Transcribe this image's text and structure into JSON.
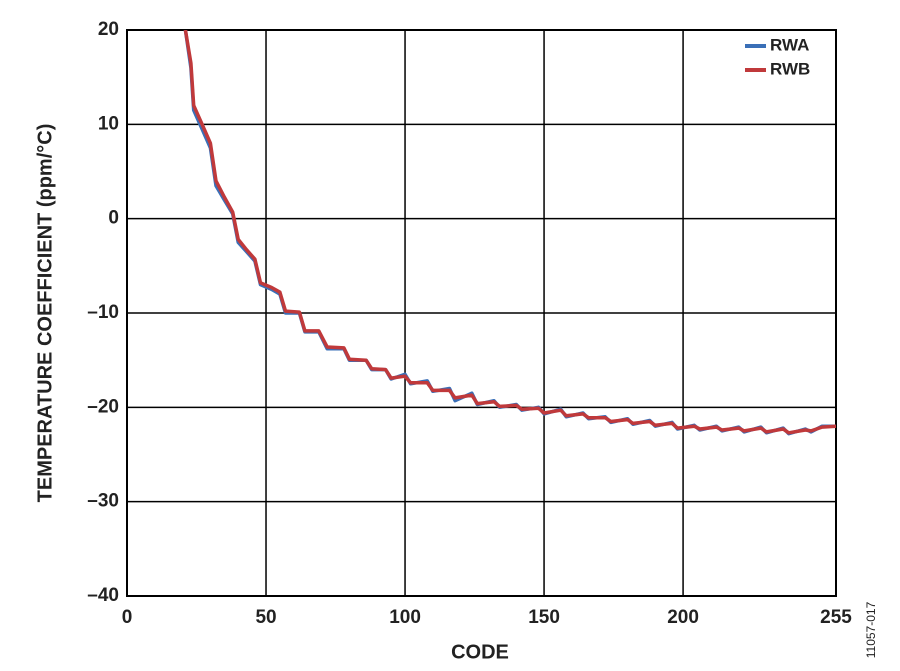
{
  "chart_data": {
    "type": "line",
    "xlabel": "CODE",
    "ylabel": "TEMPERATURE COEFFICIENT (ppm/°C)",
    "figure_id": "11057-017",
    "xlim": [
      0,
      255
    ],
    "ylim": [
      -40,
      20
    ],
    "xticks": [
      0,
      50,
      100,
      150,
      200,
      255
    ],
    "yticks": [
      {
        "value": -40,
        "label": "–40"
      },
      {
        "value": -30,
        "label": "–30"
      },
      {
        "value": -20,
        "label": "–20"
      },
      {
        "value": -10,
        "label": "–10"
      },
      0,
      10,
      20
    ],
    "grid": true,
    "legend": "upper right",
    "x": [
      21,
      23,
      24,
      27,
      30,
      32,
      35,
      38,
      40,
      43,
      46,
      48,
      52,
      55,
      57,
      62,
      64,
      69,
      72,
      78,
      80,
      86,
      88,
      93,
      95,
      100,
      102,
      108,
      110,
      116,
      118,
      124,
      126,
      132,
      134,
      140,
      142,
      148,
      150,
      156,
      158,
      164,
      166,
      172,
      174,
      180,
      182,
      188,
      190,
      196,
      198,
      204,
      206,
      212,
      214,
      220,
      222,
      228,
      230,
      236,
      238,
      244,
      246,
      250,
      255
    ],
    "series": [
      {
        "name": "RWA",
        "color": "#3a6fb7",
        "values": [
          20,
          16,
          11.5,
          9.5,
          7.5,
          3.5,
          2,
          0.5,
          -2.5,
          -3.5,
          -4.5,
          -7,
          -7.5,
          -8,
          -10,
          -10,
          -12,
          -12,
          -13.8,
          -13.8,
          -15,
          -15,
          -16,
          -16,
          -17,
          -16.5,
          -17.5,
          -17.2,
          -18.3,
          -18,
          -19.3,
          -18.5,
          -19.7,
          -19.3,
          -20,
          -19.7,
          -20.3,
          -20,
          -20.7,
          -20.2,
          -21,
          -20.6,
          -21.2,
          -21,
          -21.6,
          -21.2,
          -21.8,
          -21.4,
          -22,
          -21.6,
          -22.3,
          -21.9,
          -22.4,
          -22,
          -22.5,
          -22.1,
          -22.6,
          -22.1,
          -22.7,
          -22.2,
          -22.8,
          -22.3,
          -22.6,
          -22,
          -22
        ]
      },
      {
        "name": "RWB",
        "color": "#c0393b",
        "values": [
          20,
          16.5,
          12,
          10,
          8,
          4,
          2.3,
          0.7,
          -2.2,
          -3.3,
          -4.3,
          -6.8,
          -7.3,
          -7.8,
          -9.8,
          -9.9,
          -11.9,
          -11.9,
          -13.6,
          -13.7,
          -14.9,
          -15,
          -15.9,
          -16,
          -16.9,
          -16.7,
          -17.4,
          -17.4,
          -18.2,
          -18.2,
          -19,
          -18.7,
          -19.6,
          -19.4,
          -19.9,
          -19.8,
          -20.2,
          -20.1,
          -20.6,
          -20.3,
          -20.9,
          -20.7,
          -21.1,
          -21.1,
          -21.5,
          -21.3,
          -21.7,
          -21.5,
          -21.9,
          -21.7,
          -22.2,
          -22,
          -22.3,
          -22.1,
          -22.4,
          -22.2,
          -22.5,
          -22.2,
          -22.6,
          -22.3,
          -22.7,
          -22.4,
          -22.5,
          -22.1,
          -22
        ]
      }
    ]
  }
}
